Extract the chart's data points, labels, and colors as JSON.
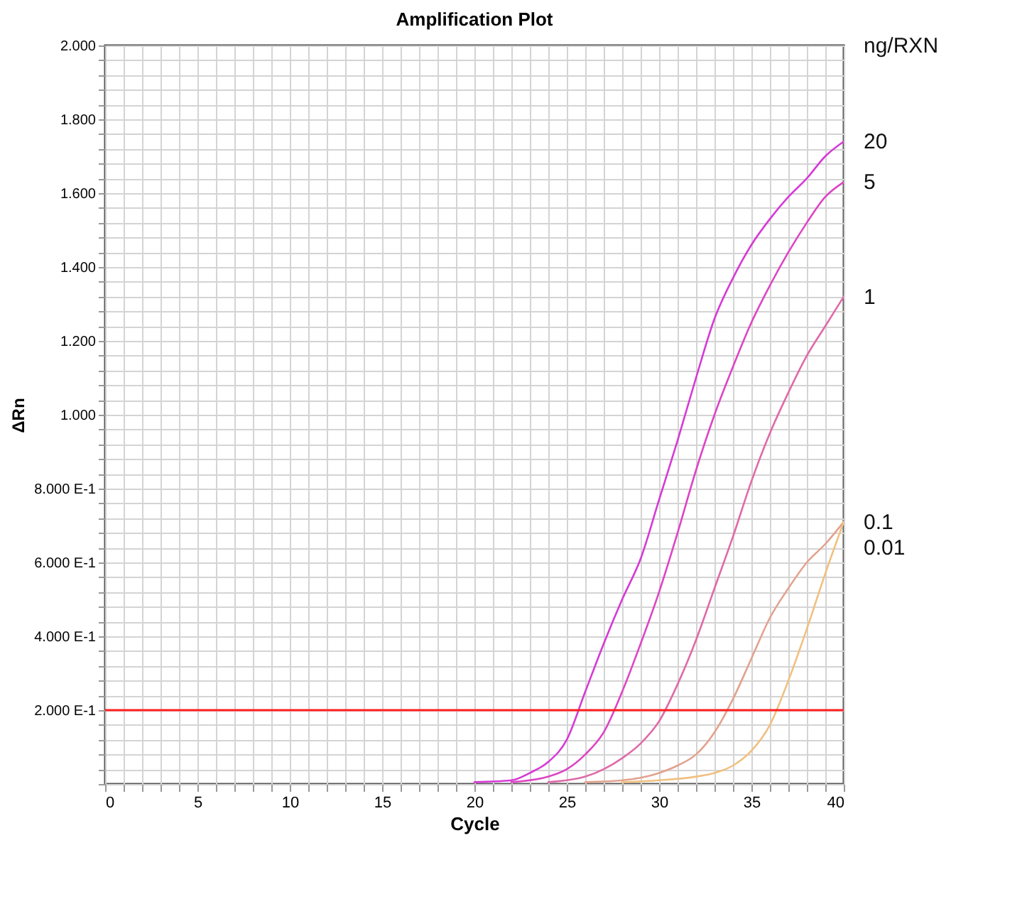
{
  "chart_data": {
    "type": "line",
    "title": "Amplification Plot",
    "xlabel": "Cycle",
    "ylabel": "ΔRn",
    "legend_title": "ng/RXN",
    "xlim": [
      0,
      40
    ],
    "ylim": [
      0,
      2
    ],
    "xticks": [
      0,
      {
        "value": 1,
        "label": null
      },
      {
        "value": 2,
        "label": null
      },
      {
        "value": 3,
        "label": null
      },
      {
        "value": 4,
        "label": null
      },
      5,
      {
        "value": 6,
        "label": null
      },
      {
        "value": 7,
        "label": null
      },
      {
        "value": 8,
        "label": null
      },
      {
        "value": 9,
        "label": null
      },
      10,
      {
        "value": 11,
        "label": null
      },
      {
        "value": 12,
        "label": null
      },
      {
        "value": 13,
        "label": null
      },
      {
        "value": 14,
        "label": null
      },
      15,
      {
        "value": 16,
        "label": null
      },
      {
        "value": 17,
        "label": null
      },
      {
        "value": 18,
        "label": null
      },
      {
        "value": 19,
        "label": null
      },
      20,
      {
        "value": 21,
        "label": null
      },
      {
        "value": 22,
        "label": null
      },
      {
        "value": 23,
        "label": null
      },
      {
        "value": 24,
        "label": null
      },
      25,
      {
        "value": 26,
        "label": null
      },
      {
        "value": 27,
        "label": null
      },
      {
        "value": 28,
        "label": null
      },
      {
        "value": 29,
        "label": null
      },
      30,
      {
        "value": 31,
        "label": null
      },
      {
        "value": 32,
        "label": null
      },
      {
        "value": 33,
        "label": null
      },
      {
        "value": 34,
        "label": null
      },
      35,
      {
        "value": 36,
        "label": null
      },
      {
        "value": 37,
        "label": null
      },
      {
        "value": 38,
        "label": null
      },
      {
        "value": 39,
        "label": null
      },
      40
    ],
    "yticks": [
      {
        "value": 0,
        "label": null
      },
      {
        "value": 0.04,
        "label": null
      },
      {
        "value": 0.08,
        "label": null
      },
      {
        "value": 0.12,
        "label": null
      },
      {
        "value": 0.16,
        "label": null
      },
      {
        "value": 0.2,
        "label": "2.000 E-1"
      },
      {
        "value": 0.24,
        "label": null
      },
      {
        "value": 0.28,
        "label": null
      },
      {
        "value": 0.32,
        "label": null
      },
      {
        "value": 0.36,
        "label": null
      },
      {
        "value": 0.4,
        "label": "4.000 E-1"
      },
      {
        "value": 0.44,
        "label": null
      },
      {
        "value": 0.48,
        "label": null
      },
      {
        "value": 0.52,
        "label": null
      },
      {
        "value": 0.56,
        "label": null
      },
      {
        "value": 0.6,
        "label": "6.000 E-1"
      },
      {
        "value": 0.64,
        "label": null
      },
      {
        "value": 0.68,
        "label": null
      },
      {
        "value": 0.72,
        "label": null
      },
      {
        "value": 0.76,
        "label": null
      },
      {
        "value": 0.8,
        "label": "8.000 E-1"
      },
      {
        "value": 0.84,
        "label": null
      },
      {
        "value": 0.88,
        "label": null
      },
      {
        "value": 0.92,
        "label": null
      },
      {
        "value": 0.96,
        "label": null
      },
      {
        "value": 1,
        "label": "1.000"
      },
      {
        "value": 1.04,
        "label": null
      },
      {
        "value": 1.08,
        "label": null
      },
      {
        "value": 1.12,
        "label": null
      },
      {
        "value": 1.16,
        "label": null
      },
      {
        "value": 1.2,
        "label": "1.200"
      },
      {
        "value": 1.24,
        "label": null
      },
      {
        "value": 1.28,
        "label": null
      },
      {
        "value": 1.32,
        "label": null
      },
      {
        "value": 1.36,
        "label": null
      },
      {
        "value": 1.4,
        "label": "1.400"
      },
      {
        "value": 1.44,
        "label": null
      },
      {
        "value": 1.48,
        "label": null
      },
      {
        "value": 1.52,
        "label": null
      },
      {
        "value": 1.56,
        "label": null
      },
      {
        "value": 1.6,
        "label": "1.600"
      },
      {
        "value": 1.64,
        "label": null
      },
      {
        "value": 1.68,
        "label": null
      },
      {
        "value": 1.72,
        "label": null
      },
      {
        "value": 1.76,
        "label": null
      },
      {
        "value": 1.8,
        "label": "1.800"
      },
      {
        "value": 1.84,
        "label": null
      },
      {
        "value": 1.88,
        "label": null
      },
      {
        "value": 1.92,
        "label": null
      },
      {
        "value": 1.96,
        "label": null
      },
      {
        "value": 2,
        "label": "2.000"
      }
    ],
    "grid": true,
    "line_style": "solid",
    "series": [
      {
        "name": "20",
        "color": "#d63ad6",
        "x": [
          20,
          22,
          23,
          24,
          25,
          26,
          27,
          28,
          29,
          30,
          31,
          32,
          33,
          34,
          35,
          36,
          37,
          38,
          39,
          40
        ],
        "values": [
          0.005,
          0.01,
          0.03,
          0.06,
          0.12,
          0.25,
          0.38,
          0.5,
          0.61,
          0.77,
          0.93,
          1.1,
          1.26,
          1.37,
          1.46,
          1.53,
          1.59,
          1.64,
          1.7,
          1.74
        ]
      },
      {
        "name": "5",
        "color": "#dd45c4",
        "x": [
          22,
          24,
          25,
          26,
          27,
          28,
          29,
          30,
          31,
          32,
          33,
          34,
          35,
          36,
          37,
          38,
          39,
          40
        ],
        "values": [
          0.005,
          0.02,
          0.04,
          0.08,
          0.14,
          0.25,
          0.38,
          0.52,
          0.68,
          0.85,
          1.0,
          1.13,
          1.25,
          1.35,
          1.44,
          1.52,
          1.59,
          1.63
        ]
      },
      {
        "name": "1",
        "color": "#e06aa8",
        "x": [
          24,
          26,
          27,
          28,
          29,
          30,
          31,
          32,
          33,
          34,
          35,
          36,
          37,
          38,
          39,
          40
        ],
        "values": [
          0.005,
          0.02,
          0.04,
          0.07,
          0.11,
          0.17,
          0.27,
          0.39,
          0.53,
          0.67,
          0.82,
          0.95,
          1.06,
          1.16,
          1.24,
          1.32
        ]
      },
      {
        "name": "0.1",
        "color": "#e2a28e",
        "x": [
          26,
          28,
          30,
          31,
          32,
          33,
          34,
          35,
          36,
          37,
          38,
          39,
          40
        ],
        "values": [
          0.005,
          0.01,
          0.03,
          0.05,
          0.08,
          0.14,
          0.23,
          0.34,
          0.45,
          0.53,
          0.6,
          0.65,
          0.71
        ]
      },
      {
        "name": "0.01",
        "color": "#f0c080",
        "x": [
          28,
          30,
          32,
          33,
          34,
          35,
          36,
          37,
          38,
          39,
          40
        ],
        "values": [
          0.005,
          0.01,
          0.02,
          0.03,
          0.05,
          0.09,
          0.16,
          0.28,
          0.42,
          0.57,
          0.71
        ]
      }
    ],
    "ref_lines": [
      {
        "axis": "y",
        "value": 0.2,
        "color": "#ff2020"
      }
    ]
  }
}
